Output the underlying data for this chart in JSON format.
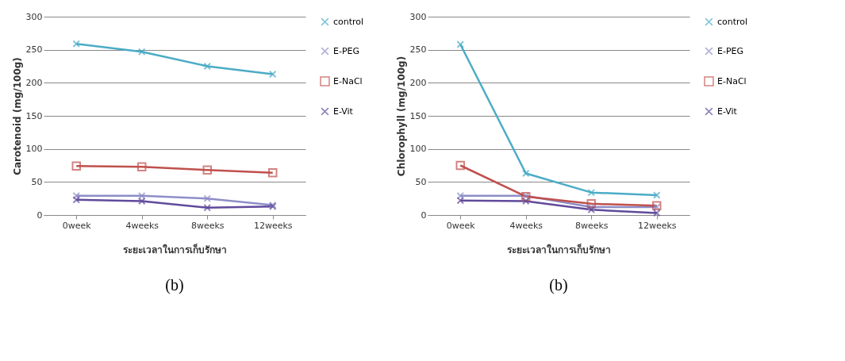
{
  "chart_data": [
    {
      "type": "line",
      "xlabel": "ระยะเวลาในการเก็บรักษา",
      "ylabel": "Carotenoid (mg/100g)",
      "categories": [
        "0week",
        "4weeks",
        "8weeks",
        "12weeks"
      ],
      "ylim": [
        0,
        300
      ],
      "yticks": [
        0,
        50,
        100,
        150,
        200,
        250,
        300
      ],
      "grid": "y",
      "legend": "right",
      "annotations": [
        "(b)"
      ],
      "series": [
        {
          "name": "control",
          "color": "#4bacc6",
          "marker": "cross",
          "values": [
            259,
            247,
            225,
            213
          ]
        },
        {
          "name": "E-PEG",
          "color": "#8e8ec8",
          "marker": "cross",
          "values": [
            29,
            29,
            25,
            15
          ]
        },
        {
          "name": "E-NaCl",
          "color": "#c0504d",
          "marker": "square",
          "values": [
            74,
            73,
            68,
            64
          ]
        },
        {
          "name": "E-Vit",
          "color": "#604a9b",
          "marker": "cross",
          "values": [
            23,
            21,
            11,
            13
          ]
        }
      ]
    },
    {
      "type": "line",
      "xlabel": "ระยะเวลาในการเก็บรักษา",
      "ylabel": "Chlorophyll (mg/100g)",
      "categories": [
        "0week",
        "4weeks",
        "8weeks",
        "12weeks"
      ],
      "ylim": [
        0,
        300
      ],
      "yticks": [
        0,
        50,
        100,
        150,
        200,
        250,
        300
      ],
      "grid": "y",
      "legend": "right",
      "annotations": [
        "(b)"
      ],
      "series": [
        {
          "name": "control",
          "color": "#4bacc6",
          "marker": "cross",
          "values": [
            258,
            63,
            34,
            30
          ]
        },
        {
          "name": "E-PEG",
          "color": "#8e8ec8",
          "marker": "cross",
          "values": [
            29,
            29,
            12,
            12
          ]
        },
        {
          "name": "E-NaCl",
          "color": "#c0504d",
          "marker": "square",
          "values": [
            75,
            28,
            17,
            14
          ]
        },
        {
          "name": "E-Vit",
          "color": "#604a9b",
          "marker": "cross",
          "values": [
            22,
            21,
            8,
            3
          ]
        }
      ]
    }
  ]
}
